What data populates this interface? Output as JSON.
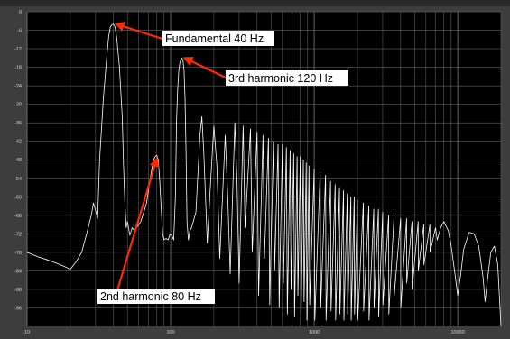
{
  "chart_data": {
    "type": "line",
    "title": "",
    "xlabel": "",
    "ylabel": "",
    "x_scale": "log",
    "xlim": [
      10,
      20000
    ],
    "ylim": [
      -102,
      0
    ],
    "grid": true,
    "y_ticks": [
      "0",
      "-6",
      "-12",
      "-18",
      "-24",
      "-30",
      "-36",
      "-42",
      "-48",
      "-54",
      "-60",
      "-66",
      "-72",
      "-78",
      "-84",
      "-90",
      "-96"
    ],
    "x_ticks": [
      "10",
      "100",
      "1000",
      "10000"
    ],
    "series": [
      {
        "points": [
          [
            10,
            -78
          ],
          [
            12,
            -79.5
          ],
          [
            14,
            -80.5
          ],
          [
            16,
            -81.5
          ],
          [
            18,
            -82.5
          ],
          [
            20,
            -83.5
          ],
          [
            22,
            -81
          ],
          [
            24,
            -78
          ],
          [
            26,
            -72
          ],
          [
            28,
            -66
          ],
          [
            29,
            -62
          ],
          [
            30,
            -64.5
          ],
          [
            31,
            -67
          ],
          [
            32,
            -48
          ],
          [
            34,
            -28
          ],
          [
            36,
            -14
          ],
          [
            37,
            -8
          ],
          [
            38,
            -5
          ],
          [
            39,
            -4.2
          ],
          [
            40,
            -4
          ],
          [
            41,
            -5
          ],
          [
            42,
            -8
          ],
          [
            44,
            -18
          ],
          [
            46,
            -34
          ],
          [
            47,
            -50
          ],
          [
            48,
            -62
          ],
          [
            49,
            -70
          ],
          [
            50,
            -68
          ],
          [
            52,
            -72.5
          ],
          [
            54,
            -70
          ],
          [
            56,
            -71
          ],
          [
            58,
            -70
          ],
          [
            60,
            -69
          ],
          [
            62,
            -68
          ],
          [
            64,
            -66
          ],
          [
            66,
            -64
          ],
          [
            68,
            -62
          ],
          [
            70,
            -58
          ],
          [
            72,
            -54
          ],
          [
            74,
            -51
          ],
          [
            76,
            -48
          ],
          [
            78,
            -47
          ],
          [
            80,
            -46.5
          ],
          [
            82,
            -48
          ],
          [
            84,
            -55
          ],
          [
            86,
            -64
          ],
          [
            88,
            -72
          ],
          [
            90,
            -74
          ],
          [
            93,
            -73.5
          ],
          [
            96,
            -74
          ],
          [
            99,
            -72
          ],
          [
            102,
            -72.5
          ],
          [
            105,
            -74
          ],
          [
            108,
            -60
          ],
          [
            110,
            -35
          ],
          [
            112,
            -25
          ],
          [
            114,
            -19
          ],
          [
            116,
            -16.5
          ],
          [
            118,
            -15.5
          ],
          [
            120,
            -15
          ],
          [
            122,
            -16
          ],
          [
            124,
            -19
          ],
          [
            126,
            -28
          ],
          [
            128,
            -45
          ],
          [
            130,
            -68
          ],
          [
            133,
            -74
          ],
          [
            136,
            -71
          ],
          [
            140,
            -70
          ],
          [
            150,
            -65
          ],
          [
            160,
            -40
          ],
          [
            165,
            -34
          ],
          [
            170,
            -45
          ],
          [
            180,
            -75
          ],
          [
            190,
            -55
          ],
          [
            200,
            -37
          ],
          [
            210,
            -50
          ],
          [
            220,
            -80
          ],
          [
            240,
            -40
          ],
          [
            250,
            -60
          ],
          [
            260,
            -85
          ],
          [
            280,
            -36
          ],
          [
            290,
            -55
          ],
          [
            300,
            -88
          ],
          [
            320,
            -37
          ],
          [
            330,
            -70
          ],
          [
            360,
            -38
          ],
          [
            370,
            -78
          ],
          [
            400,
            -39
          ],
          [
            410,
            -92
          ],
          [
            440,
            -40
          ],
          [
            450,
            -80
          ],
          [
            480,
            -41
          ],
          [
            490,
            -95
          ],
          [
            520,
            -42
          ],
          [
            530,
            -84
          ],
          [
            560,
            -43
          ],
          [
            570,
            -96
          ],
          [
            600,
            -43
          ],
          [
            610,
            -88
          ],
          [
            640,
            -44
          ],
          [
            650,
            -98
          ],
          [
            680,
            -45
          ],
          [
            690,
            -90
          ],
          [
            720,
            -46
          ],
          [
            730,
            -99
          ],
          [
            760,
            -47
          ],
          [
            770,
            -92
          ],
          [
            800,
            -47
          ],
          [
            810,
            -99
          ],
          [
            840,
            -48
          ],
          [
            850,
            -94
          ],
          [
            880,
            -49
          ],
          [
            890,
            -100
          ],
          [
            920,
            -50
          ],
          [
            930,
            -95
          ],
          [
            1000,
            -51
          ],
          [
            1010,
            -100
          ],
          [
            1100,
            -52
          ],
          [
            1110,
            -96
          ],
          [
            1200,
            -53
          ],
          [
            1210,
            -100
          ],
          [
            1300,
            -55
          ],
          [
            1310,
            -97
          ],
          [
            1400,
            -56
          ],
          [
            1410,
            -100
          ],
          [
            1500,
            -57
          ],
          [
            1510,
            -98
          ],
          [
            1600,
            -58
          ],
          [
            1610,
            -100
          ],
          [
            1700,
            -59
          ],
          [
            1710,
            -98
          ],
          [
            1800,
            -60
          ],
          [
            1810,
            -100
          ],
          [
            1900,
            -60
          ],
          [
            1910,
            -98
          ],
          [
            2000,
            -61
          ],
          [
            2010,
            -100
          ],
          [
            2200,
            -62
          ],
          [
            2210,
            -97
          ],
          [
            2400,
            -63
          ],
          [
            2410,
            -100
          ],
          [
            2600,
            -64
          ],
          [
            2610,
            -96
          ],
          [
            2800,
            -64
          ],
          [
            2810,
            -99
          ],
          [
            3000,
            -65
          ],
          [
            3010,
            -95
          ],
          [
            3300,
            -66
          ],
          [
            3310,
            -98
          ],
          [
            3600,
            -66
          ],
          [
            3610,
            -92
          ],
          [
            4000,
            -67
          ],
          [
            4010,
            -96
          ],
          [
            4400,
            -67
          ],
          [
            4410,
            -88
          ],
          [
            4800,
            -68
          ],
          [
            4810,
            -90
          ],
          [
            5300,
            -68
          ],
          [
            5310,
            -84
          ],
          [
            5800,
            -69
          ],
          [
            5810,
            -82
          ],
          [
            6400,
            -69
          ],
          [
            6410,
            -78
          ],
          [
            7000,
            -70
          ],
          [
            7200,
            -74
          ],
          [
            7600,
            -70
          ],
          [
            8000,
            -68
          ],
          [
            8600,
            -71
          ],
          [
            9000,
            -76
          ],
          [
            9500,
            -84
          ],
          [
            10000,
            -92
          ],
          [
            10500,
            -85
          ],
          [
            11000,
            -77
          ],
          [
            12000,
            -71.5
          ],
          [
            13000,
            -72
          ],
          [
            14000,
            -76
          ],
          [
            15000,
            -86
          ],
          [
            15500,
            -94
          ],
          [
            16000,
            -88
          ],
          [
            17000,
            -78
          ],
          [
            18000,
            -76
          ],
          [
            19000,
            -82
          ],
          [
            20000,
            -102
          ]
        ]
      }
    ],
    "annotations": [
      {
        "text": "Fundamental 40 Hz",
        "x": 40,
        "y": -4
      },
      {
        "text": "3rd harmonic 120 Hz",
        "x": 120,
        "y": -15
      },
      {
        "text": "2nd harmonic 80 Hz",
        "x": 80,
        "y": -46.5
      }
    ],
    "colors": {
      "background": "#000000",
      "trace": "#ffffff",
      "grid": "#7a7a7a",
      "arrow": "#ff2a00",
      "frame": "#3d3d3d"
    }
  }
}
